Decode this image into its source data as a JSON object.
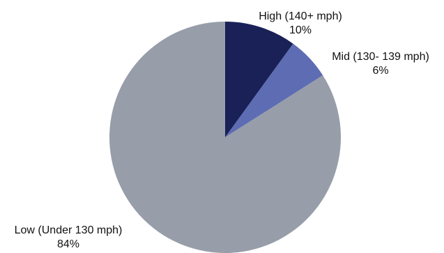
{
  "chart_data": {
    "type": "pie",
    "title": "",
    "start_angle_deg": 0,
    "direction": "clockwise",
    "slices": [
      {
        "label": "High (140+ mph)",
        "value": 10,
        "value_label": "10%",
        "color": "#1a2157"
      },
      {
        "label": "Mid (130- 139 mph)",
        "value": 6,
        "value_label": "6%",
        "color": "#5d6cb3"
      },
      {
        "label": "Low (Under 130 mph)",
        "value": 84,
        "value_label": "84%",
        "color": "#979da9"
      }
    ],
    "legend": "none"
  }
}
